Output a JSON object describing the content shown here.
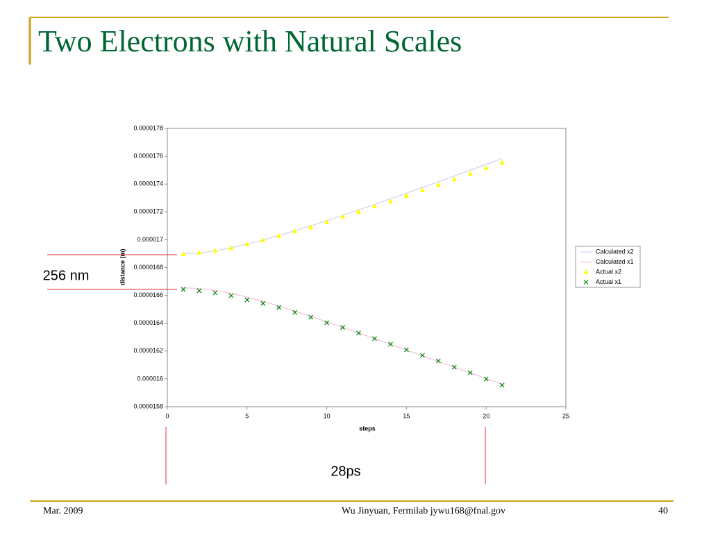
{
  "slide_title": "Two Electrons with Natural Scales",
  "chart_data": {
    "type": "line",
    "ylabel": "distance (m)",
    "xlabel": "steps",
    "x": [
      1,
      2,
      3,
      4,
      5,
      6,
      7,
      8,
      9,
      10,
      11,
      12,
      13,
      14,
      15,
      16,
      17,
      18,
      19,
      20,
      21
    ],
    "xlim": [
      0,
      25
    ],
    "xticks": [
      0,
      5,
      10,
      15,
      20,
      25
    ],
    "ylim": [
      1.58e-05,
      1.78e-05
    ],
    "yticks": [
      1.58e-05,
      1.6e-05,
      1.62e-05,
      1.64e-05,
      1.66e-05,
      1.68e-05,
      1.7e-05,
      1.72e-05,
      1.74e-05,
      1.76e-05,
      1.78e-05
    ],
    "legend": "right",
    "series": [
      {
        "name": "Calculated x2",
        "color": "#c8c8f0",
        "marker": "line",
        "values": [
          1.69e-05,
          1.6905e-05,
          1.692e-05,
          1.6942e-05,
          1.6968e-05,
          1.6998e-05,
          1.703e-05,
          1.7065e-05,
          1.71e-05,
          1.7137e-05,
          1.7175e-05,
          1.7214e-05,
          1.7254e-05,
          1.7294e-05,
          1.7335e-05,
          1.7376e-05,
          1.7417e-05,
          1.7458e-05,
          1.75e-05,
          1.7542e-05,
          1.7584e-05
        ]
      },
      {
        "name": "Calculated x1",
        "color": "#f0b4d2",
        "marker": "line",
        "values": [
          1.6655e-05,
          1.665e-05,
          1.6636e-05,
          1.6615e-05,
          1.6588e-05,
          1.6557e-05,
          1.6523e-05,
          1.6487e-05,
          1.6449e-05,
          1.641e-05,
          1.637e-05,
          1.633e-05,
          1.6289e-05,
          1.6248e-05,
          1.6207e-05,
          1.6166e-05,
          1.6125e-05,
          1.6084e-05,
          1.6043e-05,
          1.6002e-05,
          1.5961e-05
        ]
      },
      {
        "name": "Actual x2",
        "color": "#ffff00",
        "marker": "triangle",
        "values": [
          1.6897e-05,
          1.6907e-05,
          1.6922e-05,
          1.6942e-05,
          1.6967e-05,
          1.6997e-05,
          1.7027e-05,
          1.7062e-05,
          1.7092e-05,
          1.7127e-05,
          1.7167e-05,
          1.7201e-05,
          1.7241e-05,
          1.7276e-05,
          1.7316e-05,
          1.7356e-05,
          1.7396e-05,
          1.7436e-05,
          1.7476e-05,
          1.7516e-05,
          1.7556e-05
        ]
      },
      {
        "name": "Actual x1",
        "color": "#008000",
        "marker": "x",
        "values": [
          1.6643e-05,
          1.6633e-05,
          1.6618e-05,
          1.6598e-05,
          1.6568e-05,
          1.6543e-05,
          1.6513e-05,
          1.6478e-05,
          1.6443e-05,
          1.6403e-05,
          1.6369e-05,
          1.6329e-05,
          1.6289e-05,
          1.6249e-05,
          1.6209e-05,
          1.6169e-05,
          1.6129e-05,
          1.6084e-05,
          1.6044e-05,
          1.5999e-05,
          1.5955e-05
        ]
      }
    ]
  },
  "annotations": [
    "256 nm",
    "28ps"
  ],
  "footer": {
    "date": "Mar. 2009",
    "author": "Wu Jinyuan, Fermilab jywu168@fnal.gov",
    "page": "40"
  }
}
